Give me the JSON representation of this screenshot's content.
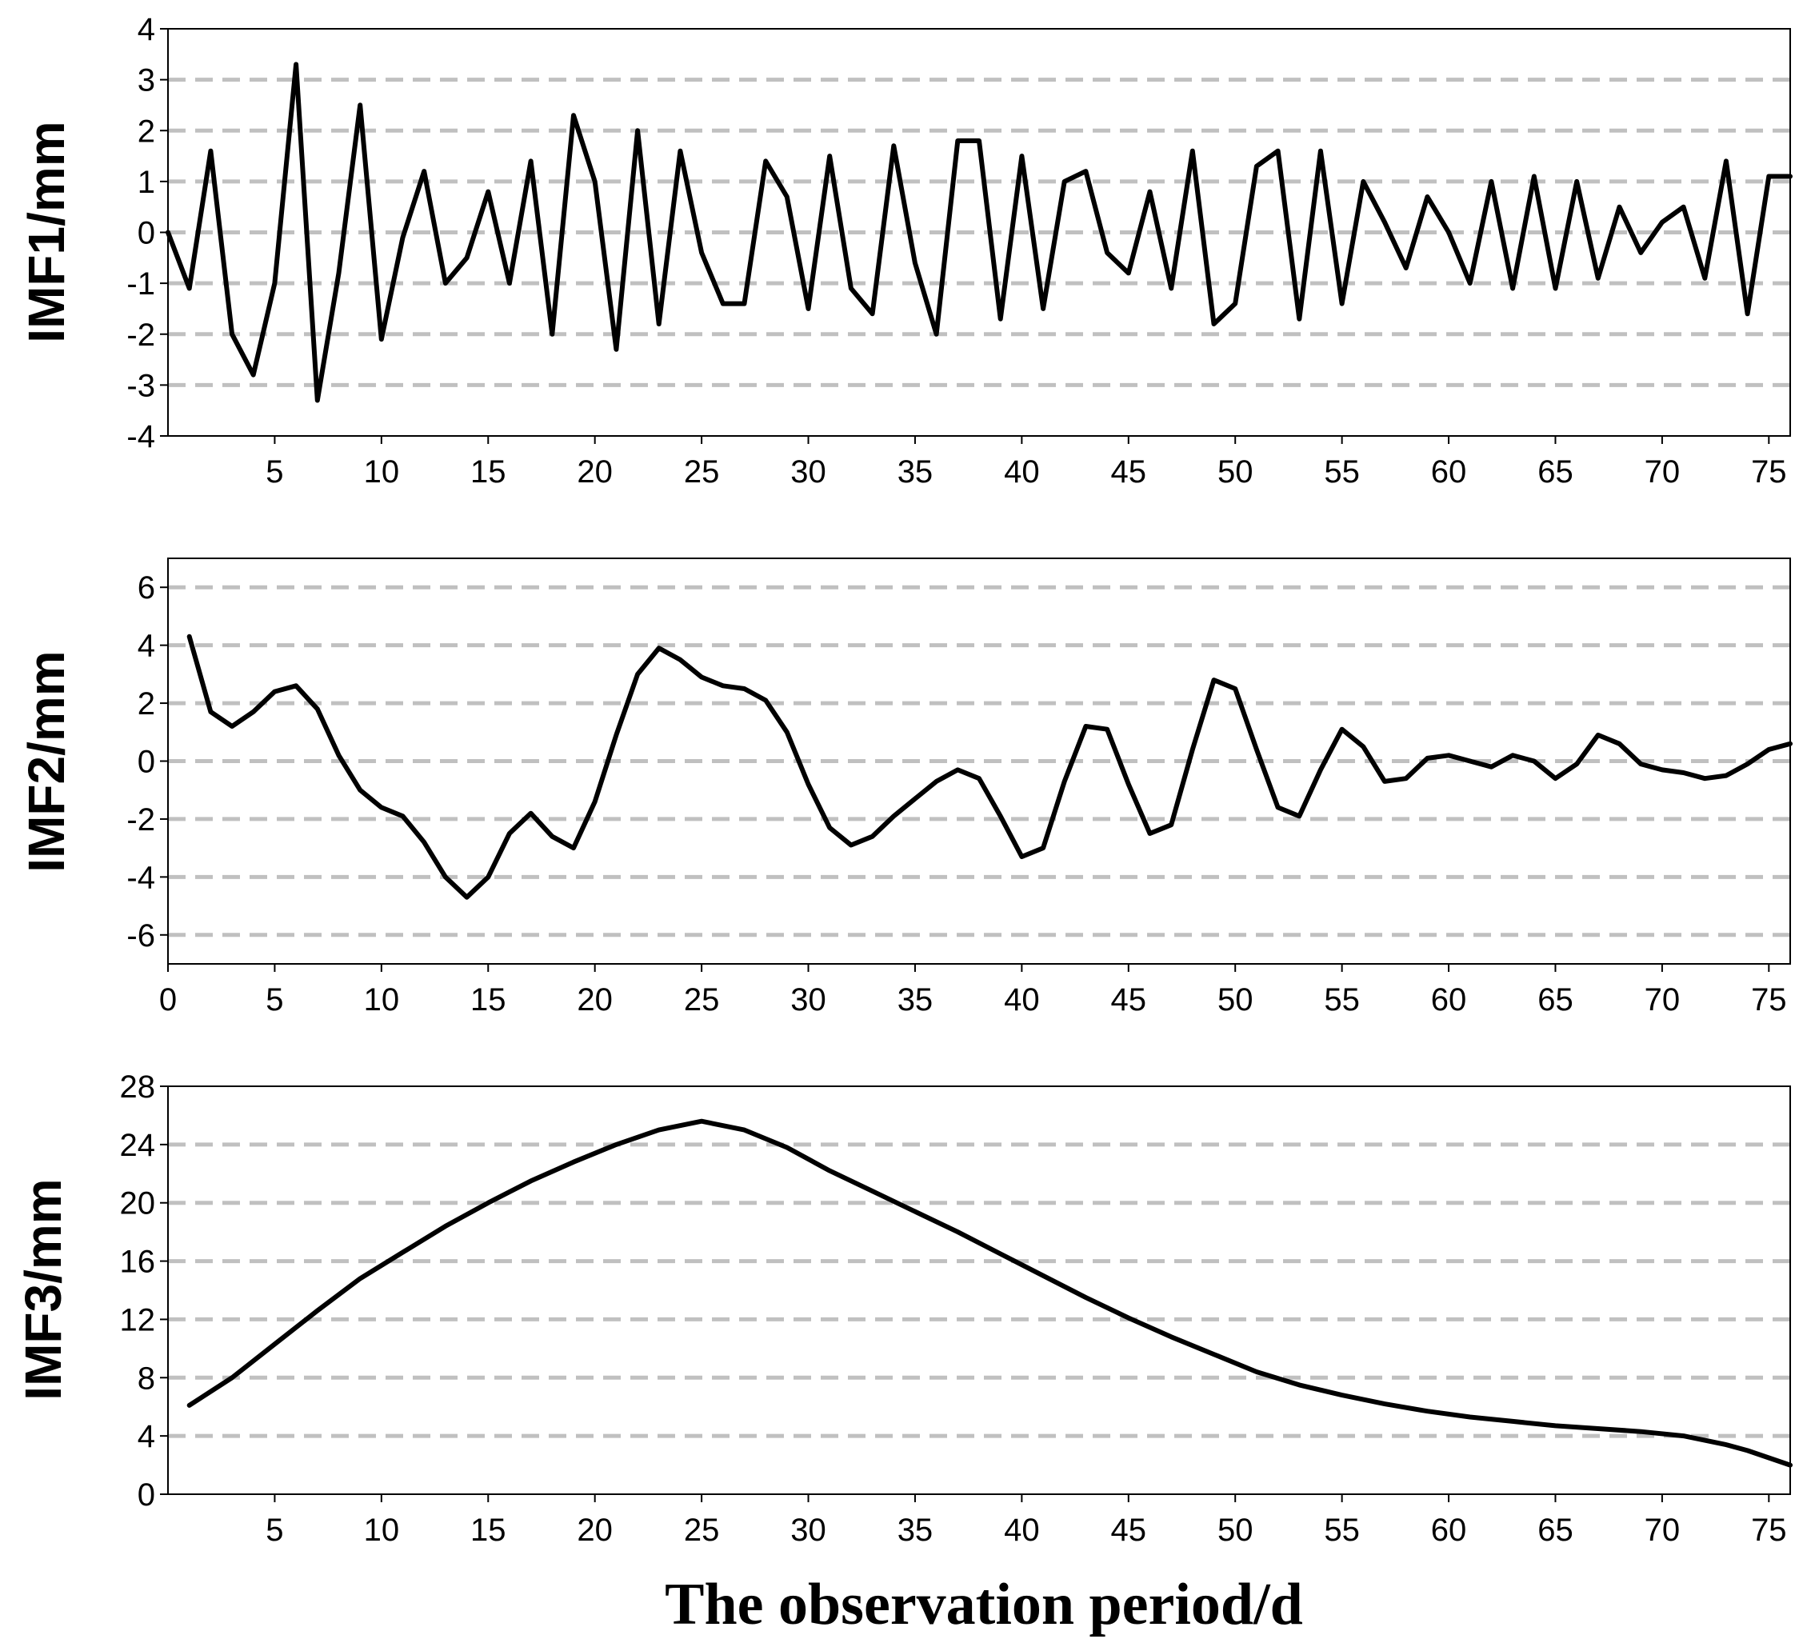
{
  "chart_data": [
    {
      "type": "line",
      "ylabel": "IMF1/mm",
      "xlabel": "",
      "xlim": [
        0,
        76
      ],
      "ylim": [
        -4,
        4
      ],
      "xticks": [
        5,
        10,
        15,
        20,
        25,
        30,
        35,
        40,
        45,
        50,
        55,
        60,
        65,
        70,
        75
      ],
      "yticks": [
        -4,
        -3,
        -2,
        -1,
        0,
        1,
        2,
        3,
        4
      ],
      "grid": "horizontal-dashed",
      "series": [
        {
          "x": [
            0,
            1,
            2,
            3,
            4,
            5,
            6,
            7,
            8,
            9,
            10,
            11,
            12,
            13,
            14,
            15,
            16,
            17,
            18,
            19,
            20,
            21,
            22,
            23,
            24,
            25,
            26,
            27,
            28,
            29,
            30,
            31,
            32,
            33,
            34,
            35,
            36,
            37,
            38,
            39,
            40,
            41,
            42,
            43,
            44,
            45,
            46,
            47,
            48,
            49,
            50,
            51,
            52,
            53,
            54,
            55,
            56,
            57,
            58,
            59,
            60,
            61,
            62,
            63,
            64,
            65,
            66,
            67,
            68,
            69,
            70,
            71,
            72,
            73,
            74,
            75,
            76
          ],
          "values": [
            0.0,
            -1.1,
            1.6,
            -2.0,
            -2.8,
            -1.0,
            3.3,
            -3.3,
            -0.8,
            2.5,
            -2.1,
            -0.1,
            1.2,
            -1.0,
            -0.5,
            0.8,
            -1.0,
            1.4,
            -2.0,
            2.3,
            1.0,
            -2.3,
            2.0,
            -1.8,
            1.6,
            -0.4,
            -1.4,
            -1.4,
            1.4,
            0.7,
            -1.5,
            1.5,
            -1.1,
            -1.6,
            1.7,
            -0.6,
            -2.0,
            1.8,
            1.8,
            -1.7,
            1.5,
            -1.5,
            1.0,
            1.2,
            -0.4,
            -0.8,
            0.8,
            -1.1,
            1.6,
            -1.8,
            -1.4,
            1.3,
            1.6,
            -1.7,
            1.6,
            -1.4,
            1.0,
            0.2,
            -0.7,
            0.7,
            0.0,
            -1.0,
            1.0,
            -1.1,
            1.1,
            -1.1,
            1.0,
            -0.9,
            0.5,
            -0.4,
            0.2,
            0.5,
            -0.9,
            1.4,
            -1.6,
            1.1,
            1.1
          ]
        }
      ]
    },
    {
      "type": "line",
      "ylabel": "IMF2/mm",
      "xlabel": "",
      "xlim": [
        0,
        76
      ],
      "ylim": [
        -7,
        7
      ],
      "xticks": [
        0,
        5,
        10,
        15,
        20,
        25,
        30,
        35,
        40,
        45,
        50,
        55,
        60,
        65,
        70,
        75
      ],
      "yticks": [
        -6,
        -4,
        -2,
        0,
        2,
        4,
        6
      ],
      "grid": "horizontal-dashed",
      "series": [
        {
          "x": [
            1,
            2,
            3,
            4,
            5,
            6,
            7,
            8,
            9,
            10,
            11,
            12,
            13,
            14,
            15,
            16,
            17,
            18,
            19,
            20,
            21,
            22,
            23,
            24,
            25,
            26,
            27,
            28,
            29,
            30,
            31,
            32,
            33,
            34,
            35,
            36,
            37,
            38,
            39,
            40,
            41,
            42,
            43,
            44,
            45,
            46,
            47,
            48,
            49,
            50,
            51,
            52,
            53,
            54,
            55,
            56,
            57,
            58,
            59,
            60,
            61,
            62,
            63,
            64,
            65,
            66,
            67,
            68,
            69,
            70,
            71,
            72,
            73,
            74,
            75,
            76
          ],
          "values": [
            4.3,
            1.7,
            1.2,
            1.7,
            2.4,
            2.6,
            1.8,
            0.2,
            -1.0,
            -1.6,
            -1.9,
            -2.8,
            -4.0,
            -4.7,
            -4.0,
            -2.5,
            -1.8,
            -2.6,
            -3.0,
            -1.4,
            0.9,
            3.0,
            3.9,
            3.5,
            2.9,
            2.6,
            2.5,
            2.1,
            1.0,
            -0.8,
            -2.3,
            -2.9,
            -2.6,
            -1.9,
            -1.3,
            -0.7,
            -0.3,
            -0.6,
            -1.9,
            -3.3,
            -3.0,
            -0.7,
            1.2,
            1.1,
            -0.8,
            -2.5,
            -2.2,
            0.4,
            2.8,
            2.5,
            0.4,
            -1.6,
            -1.9,
            -0.3,
            1.1,
            0.5,
            -0.7,
            -0.6,
            0.1,
            0.2,
            0.0,
            -0.2,
            0.2,
            -0.0,
            -0.6,
            -0.1,
            0.9,
            0.6,
            -0.1,
            -0.3,
            -0.4,
            -0.6,
            -0.5,
            -0.1,
            0.4,
            0.6
          ]
        }
      ]
    },
    {
      "type": "line",
      "ylabel": "IMF3/mm",
      "xlabel": "The observation period/d",
      "xlim": [
        0,
        76
      ],
      "ylim": [
        0,
        28
      ],
      "xticks": [
        5,
        10,
        15,
        20,
        25,
        30,
        35,
        40,
        45,
        50,
        55,
        60,
        65,
        70,
        75
      ],
      "yticks": [
        0,
        4,
        8,
        12,
        16,
        20,
        24,
        28
      ],
      "grid": "horizontal-dashed",
      "series": [
        {
          "x": [
            1,
            3,
            5,
            7,
            9,
            11,
            13,
            15,
            17,
            19,
            21,
            23,
            25,
            27,
            29,
            31,
            33,
            35,
            37,
            39,
            41,
            43,
            45,
            47,
            49,
            51,
            53,
            55,
            57,
            59,
            61,
            63,
            65,
            67,
            69,
            71,
            73,
            74,
            75,
            76
          ],
          "values": [
            6.1,
            8.0,
            10.3,
            12.6,
            14.8,
            16.6,
            18.4,
            20.0,
            21.5,
            22.8,
            24.0,
            25.0,
            25.6,
            25.0,
            23.8,
            22.2,
            20.8,
            19.4,
            18.0,
            16.5,
            15.0,
            13.5,
            12.1,
            10.8,
            9.6,
            8.4,
            7.5,
            6.8,
            6.2,
            5.7,
            5.3,
            5.0,
            4.7,
            4.5,
            4.3,
            4.0,
            3.4,
            3.0,
            2.5,
            2.0
          ]
        }
      ]
    }
  ]
}
